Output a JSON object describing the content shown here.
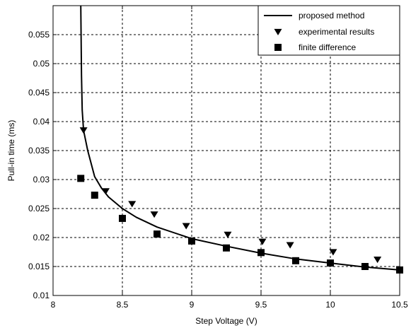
{
  "chart_data": {
    "type": "line",
    "title": "",
    "xlabel": "Step Voltage (V)",
    "ylabel": "Pull-in time (ms)",
    "xlim": [
      8,
      10.5
    ],
    "ylim": [
      0.01,
      0.06
    ],
    "x_ticks": [
      8,
      8.5,
      9,
      9.5,
      10,
      10.5
    ],
    "x_tick_labels": [
      "8",
      "8.5",
      "9",
      "9.5",
      "10",
      "10.5"
    ],
    "y_ticks": [
      0.01,
      0.015,
      0.02,
      0.025,
      0.03,
      0.035,
      0.04,
      0.045,
      0.05,
      0.055
    ],
    "y_tick_labels": [
      "0.01",
      "0.015",
      "0.02",
      "0.025",
      "0.03",
      "0.035",
      "0.04",
      "0.045",
      "0.05",
      "0.055"
    ],
    "grid": true,
    "legend_position": "top-right",
    "series": [
      {
        "name": "proposed method",
        "style": "line",
        "color": "#000000",
        "x": [
          8.2,
          8.205,
          8.21,
          8.22,
          8.25,
          8.3,
          8.35,
          8.4,
          8.5,
          8.6,
          8.75,
          9.0,
          9.25,
          9.5,
          9.75,
          10.0,
          10.25,
          10.5
        ],
        "y": [
          0.06,
          0.048,
          0.042,
          0.0385,
          0.035,
          0.0305,
          0.0285,
          0.027,
          0.025,
          0.0235,
          0.0218,
          0.0198,
          0.0185,
          0.0173,
          0.0163,
          0.0156,
          0.0149,
          0.0144
        ]
      },
      {
        "name": "experimental results",
        "style": "marker",
        "marker": "triangle-down",
        "color": "#000000",
        "x": [
          8.22,
          8.38,
          8.57,
          8.73,
          8.96,
          9.26,
          9.51,
          9.71,
          10.02,
          10.34
        ],
        "y": [
          0.0385,
          0.028,
          0.0258,
          0.024,
          0.022,
          0.0205,
          0.0193,
          0.0187,
          0.0175,
          0.0162
        ]
      },
      {
        "name": "finite difference",
        "style": "marker",
        "marker": "square",
        "color": "#000000",
        "x": [
          8.2,
          8.3,
          8.5,
          8.75,
          9.0,
          9.25,
          9.5,
          9.75,
          10.0,
          10.25,
          10.5
        ],
        "y": [
          0.0302,
          0.0273,
          0.0233,
          0.0206,
          0.0194,
          0.0182,
          0.0174,
          0.016,
          0.0156,
          0.015,
          0.0144
        ]
      }
    ]
  }
}
